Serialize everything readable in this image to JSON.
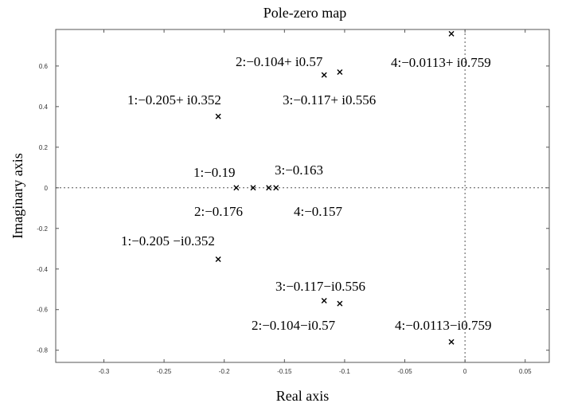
{
  "chart_data": {
    "type": "scatter",
    "title": "Pole-zero map",
    "xlabel": "Real axis",
    "ylabel": "Imaginary axis",
    "xlim": [
      -0.34,
      0.07
    ],
    "ylim": [
      -0.86,
      0.78
    ],
    "grid": false,
    "xticks": [
      -0.3,
      -0.25,
      -0.2,
      -0.15,
      -0.1,
      -0.05,
      0,
      0.05
    ],
    "xtick_labels": [
      "-0.3",
      "-0.25",
      "-0.2",
      "-0.15",
      "-0.1",
      "-0.05",
      "0",
      "0.05"
    ],
    "yticks": [
      -0.8,
      -0.6,
      -0.4,
      -0.2,
      0,
      0.2,
      0.4,
      0.6
    ],
    "ytick_labels": [
      "-0.8",
      "-0.6",
      "-0.4",
      "-0.2",
      "0",
      "0.2",
      "0.4",
      "0.6"
    ],
    "marker": "x",
    "marker_color": "#000000",
    "series": [
      {
        "points": [
          {
            "x": -0.205,
            "y": 0.352,
            "label": "1:−0.205+ i0.352"
          },
          {
            "x": -0.104,
            "y": 0.57,
            "label": "2:−0.104+ i0.57"
          },
          {
            "x": -0.117,
            "y": 0.556,
            "label": "3:−0.117+ i0.556"
          },
          {
            "x": -0.0113,
            "y": 0.759,
            "label": "4:−0.0113+ i0.759"
          },
          {
            "x": -0.19,
            "y": 0,
            "label": "1:−0.19"
          },
          {
            "x": -0.176,
            "y": 0,
            "label": "2:−0.176"
          },
          {
            "x": -0.163,
            "y": 0,
            "label": "3:−0.163"
          },
          {
            "x": -0.157,
            "y": 0,
            "label": "4:−0.157"
          },
          {
            "x": -0.205,
            "y": -0.352,
            "label": "1:−0.205 −i0.352"
          },
          {
            "x": -0.117,
            "y": -0.556,
            "label": "3:−0.117−i0.556"
          },
          {
            "x": -0.104,
            "y": -0.57,
            "label": "2:−0.104−i0.57"
          },
          {
            "x": -0.0113,
            "y": -0.759,
            "label": "4:−0.0113−i0.759"
          }
        ]
      }
    ]
  }
}
